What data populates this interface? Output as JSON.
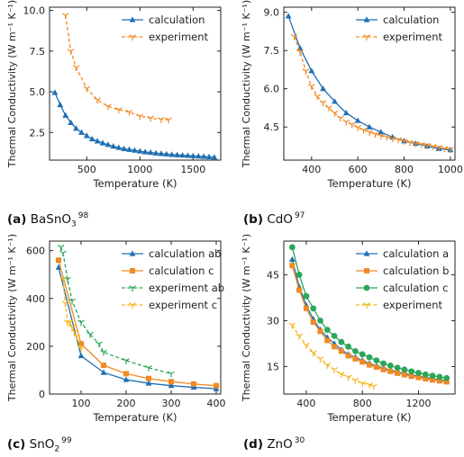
{
  "colors": {
    "blue": "#1f6fb2",
    "orange": "#f08a24",
    "green": "#2ca65a",
    "yellow": "#f5b417",
    "axis": "#222222"
  },
  "chart_data": [
    {
      "type": "line",
      "panel": "a",
      "caption": {
        "letter": "(a)",
        "material_prefix": "BaSnO",
        "material_sub": "3",
        "ref": "98"
      },
      "xlabel": "Temperature (K)",
      "ylabel": "Thermal Conductivity (W m⁻¹ K⁻¹)",
      "xlim": [
        150,
        1760
      ],
      "ylim": [
        0.8,
        10.2
      ],
      "xticks": [
        500,
        1000,
        1500
      ],
      "yticks": [
        2.5,
        5.0,
        7.5,
        10.0
      ],
      "xtick_labels": [
        "500",
        "1000",
        "1500"
      ],
      "ytick_labels": [
        "2.5",
        "5.0",
        "7.5",
        "10.0"
      ],
      "legend": "top-right",
      "series": [
        {
          "name": "calculation",
          "color": "blue",
          "marker": "triangle",
          "dash": false,
          "x": [
            200,
            250,
            300,
            350,
            400,
            450,
            500,
            550,
            600,
            650,
            700,
            750,
            800,
            850,
            900,
            950,
            1000,
            1050,
            1100,
            1150,
            1200,
            1250,
            1300,
            1350,
            1400,
            1450,
            1500,
            1550,
            1600,
            1650,
            1700
          ],
          "y": [
            4.95,
            4.2,
            3.55,
            3.1,
            2.75,
            2.5,
            2.3,
            2.1,
            1.97,
            1.85,
            1.75,
            1.65,
            1.57,
            1.5,
            1.45,
            1.4,
            1.35,
            1.3,
            1.27,
            1.23,
            1.2,
            1.17,
            1.14,
            1.12,
            1.1,
            1.08,
            1.06,
            1.04,
            1.02,
            1.0,
            0.98
          ]
        },
        {
          "name": "experiment",
          "color": "orange",
          "marker": "tri_down",
          "dash": true,
          "x": [
            300,
            350,
            400,
            500,
            600,
            700,
            800,
            900,
            1000,
            1100,
            1200,
            1270
          ],
          "y": [
            9.7,
            7.5,
            6.5,
            5.2,
            4.5,
            4.1,
            3.9,
            3.75,
            3.5,
            3.38,
            3.3,
            3.28
          ]
        }
      ]
    },
    {
      "type": "line",
      "panel": "b",
      "caption": {
        "letter": "(b)",
        "material_prefix": "CdO",
        "material_sub": "",
        "ref": "97"
      },
      "xlabel": "Temperature (K)",
      "ylabel": "Thermal Conductivity (W m⁻¹ K⁻¹)",
      "xlim": [
        280,
        1020
      ],
      "ylim": [
        3.2,
        9.2
      ],
      "xticks": [
        400,
        600,
        800,
        1000
      ],
      "yticks": [
        4.5,
        6.0,
        7.5,
        9.0
      ],
      "xtick_labels": [
        "400",
        "600",
        "800",
        "1000"
      ],
      "ytick_labels": [
        "4.5",
        "6.0",
        "7.5",
        "9.0"
      ],
      "legend": "top-right",
      "series": [
        {
          "name": "calculation",
          "color": "blue",
          "marker": "triangle",
          "dash": false,
          "x": [
            300,
            350,
            400,
            450,
            500,
            550,
            600,
            650,
            700,
            750,
            800,
            850,
            900,
            950,
            1000
          ],
          "y": [
            8.85,
            7.6,
            6.7,
            6.0,
            5.5,
            5.05,
            4.75,
            4.5,
            4.3,
            4.1,
            3.95,
            3.85,
            3.75,
            3.65,
            3.6
          ]
        },
        {
          "name": "experiment",
          "color": "orange",
          "marker": "tri_down",
          "dash": true,
          "x": [
            325,
            350,
            375,
            400,
            425,
            450,
            475,
            500,
            525,
            550,
            575,
            600,
            625,
            650,
            675,
            700,
            725,
            750,
            775,
            800,
            825,
            850,
            875,
            900,
            925,
            950,
            975,
            1000
          ],
          "y": [
            8.05,
            7.45,
            6.7,
            6.1,
            5.7,
            5.45,
            5.25,
            5.05,
            4.85,
            4.7,
            4.6,
            4.48,
            4.38,
            4.3,
            4.22,
            4.15,
            4.1,
            4.05,
            4.0,
            3.95,
            3.9,
            3.85,
            3.82,
            3.78,
            3.74,
            3.7,
            3.66,
            3.62
          ]
        }
      ]
    },
    {
      "type": "line",
      "panel": "c",
      "caption": {
        "letter": "(c)",
        "material_prefix": "SnO",
        "material_sub": "2",
        "ref": "99"
      },
      "xlabel": "Temperature (K)",
      "ylabel": "Thermal Conductivity (W m⁻¹ K⁻¹)",
      "xlim": [
        30,
        410
      ],
      "ylim": [
        0,
        640
      ],
      "xticks": [
        100,
        200,
        300,
        400
      ],
      "yticks": [
        0,
        200,
        400,
        600
      ],
      "xtick_labels": [
        "100",
        "200",
        "300",
        "400"
      ],
      "ytick_labels": [
        "0",
        "200",
        "400",
        "600"
      ],
      "legend": "top-right",
      "series": [
        {
          "name": "calculation ab",
          "color": "blue",
          "marker": "triangle",
          "dash": false,
          "x": [
            50,
            100,
            150,
            200,
            250,
            300,
            350,
            400
          ],
          "y": [
            530,
            160,
            90,
            60,
            45,
            35,
            28,
            22
          ]
        },
        {
          "name": "calculation c",
          "color": "orange",
          "marker": "square",
          "dash": false,
          "x": [
            50,
            100,
            150,
            200,
            250,
            300,
            350,
            400
          ],
          "y": [
            560,
            210,
            120,
            85,
            65,
            52,
            42,
            35
          ]
        },
        {
          "name": "experiment ab",
          "color": "green",
          "marker": "tri_down",
          "dash": true,
          "x": [
            55,
            60,
            70,
            80,
            100,
            120,
            140,
            150,
            200,
            250,
            300
          ],
          "y": [
            615,
            590,
            480,
            390,
            300,
            250,
            210,
            175,
            140,
            110,
            85
          ]
        },
        {
          "name": "experiment c",
          "color": "yellow",
          "marker": "tri_down",
          "dash": true,
          "x": [
            60,
            65,
            70,
            75,
            80,
            85,
            90,
            100
          ],
          "y": [
            480,
            380,
            300,
            300,
            280,
            260,
            240,
            190
          ]
        }
      ]
    },
    {
      "type": "line",
      "panel": "d",
      "caption": {
        "letter": "(d)",
        "material_prefix": "ZnO",
        "material_sub": "",
        "ref": "30"
      },
      "xlabel": "Temperature (K)",
      "ylabel": "Thermal Conductivity (W m⁻¹ K⁻¹)",
      "xlim": [
        240,
        1460
      ],
      "ylim": [
        6,
        56
      ],
      "xticks": [
        400,
        800,
        1200
      ],
      "yticks": [
        15,
        30,
        45
      ],
      "xtick_labels": [
        "400",
        "800",
        "1200"
      ],
      "ytick_labels": [
        "15",
        "30",
        "45"
      ],
      "legend": "top-right",
      "series": [
        {
          "name": "calculation a",
          "color": "blue",
          "marker": "triangle",
          "dash": false,
          "x": [
            300,
            350,
            400,
            450,
            500,
            550,
            600,
            650,
            700,
            750,
            800,
            850,
            900,
            950,
            1000,
            1050,
            1100,
            1150,
            1200,
            1250,
            1300,
            1350,
            1400
          ],
          "y": [
            50,
            41,
            35,
            30.5,
            27,
            24.5,
            22.5,
            20.5,
            19,
            18,
            17,
            16,
            15.2,
            14.5,
            13.8,
            13.2,
            12.7,
            12.2,
            11.8,
            11.4,
            11,
            10.6,
            10.3
          ]
        },
        {
          "name": "calculation b",
          "color": "orange",
          "marker": "square",
          "dash": false,
          "x": [
            300,
            350,
            400,
            450,
            500,
            550,
            600,
            650,
            700,
            750,
            800,
            850,
            900,
            950,
            1000,
            1050,
            1100,
            1150,
            1200,
            1250,
            1300,
            1350,
            1400
          ],
          "y": [
            48,
            40,
            34,
            29.5,
            26.5,
            23.5,
            21.5,
            20,
            18.5,
            17.5,
            16.5,
            15.5,
            14.8,
            14,
            13.4,
            12.8,
            12.3,
            11.8,
            11.4,
            11,
            10.6,
            10.3,
            10
          ]
        },
        {
          "name": "calculation c",
          "color": "green",
          "marker": "circle",
          "dash": false,
          "x": [
            300,
            350,
            400,
            450,
            500,
            550,
            600,
            650,
            700,
            750,
            800,
            850,
            900,
            950,
            1000,
            1050,
            1100,
            1150,
            1200,
            1250,
            1300,
            1350,
            1400
          ],
          "y": [
            54,
            45,
            38,
            34,
            30,
            27,
            25,
            23,
            21.5,
            20,
            19,
            18,
            17,
            16,
            15.3,
            14.6,
            14,
            13.4,
            12.9,
            12.4,
            12,
            11.6,
            11.2
          ]
        },
        {
          "name": "experiment",
          "color": "yellow",
          "marker": "tri_down",
          "dash": true,
          "x": [
            300,
            350,
            400,
            450,
            500,
            550,
            600,
            650,
            700,
            750,
            800,
            850,
            880
          ],
          "y": [
            28.5,
            25,
            22,
            19.5,
            17.5,
            15.5,
            14,
            12.5,
            11.5,
            10.5,
            9.5,
            9,
            8.5
          ]
        }
      ]
    }
  ]
}
